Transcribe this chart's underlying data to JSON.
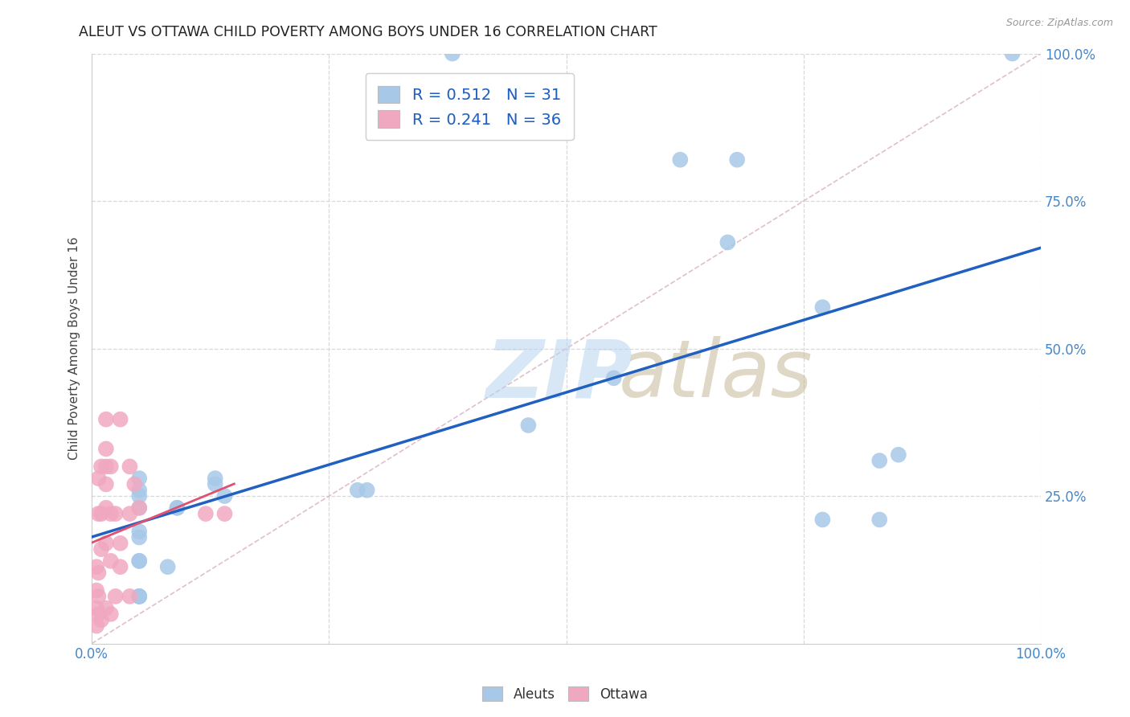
{
  "title": "ALEUT VS OTTAWA CHILD POVERTY AMONG BOYS UNDER 16 CORRELATION CHART",
  "source": "Source: ZipAtlas.com",
  "ylabel": "Child Poverty Among Boys Under 16",
  "xlim": [
    0.0,
    1.0
  ],
  "ylim": [
    0.0,
    1.0
  ],
  "xticks": [
    0.0,
    1.0
  ],
  "xticklabels": [
    "0.0%",
    "100.0%"
  ],
  "yticks": [
    0.25,
    0.5,
    0.75,
    1.0
  ],
  "yticklabels": [
    "25.0%",
    "50.0%",
    "75.0%",
    "100.0%"
  ],
  "grid_yticks": [
    0.25,
    0.5,
    0.75,
    1.0
  ],
  "grid_xticks": [
    0.25,
    0.5,
    0.75,
    1.0
  ],
  "aleuts_color": "#a8c8e8",
  "ottawa_color": "#f0a8c0",
  "aleuts_R": 0.512,
  "aleuts_N": 31,
  "ottawa_R": 0.241,
  "ottawa_N": 36,
  "aleuts_line_color": "#2060c0",
  "ottawa_line_color": "#e05070",
  "diagonal_color": "#d8b0c0",
  "background_color": "#ffffff",
  "grid_color": "#d8d8d8",
  "tick_color": "#4488cc",
  "aleuts_x": [
    0.38,
    0.97,
    0.62,
    0.68,
    0.67,
    0.55,
    0.46,
    0.77,
    0.83,
    0.77,
    0.83,
    0.85,
    0.05,
    0.05,
    0.05,
    0.13,
    0.13,
    0.14,
    0.28,
    0.29,
    0.05,
    0.05,
    0.05,
    0.08,
    0.05,
    0.05,
    0.05,
    0.09,
    0.09,
    0.05,
    0.05
  ],
  "aleuts_y": [
    1.0,
    1.0,
    0.82,
    0.82,
    0.68,
    0.45,
    0.37,
    0.57,
    0.31,
    0.21,
    0.21,
    0.32,
    0.26,
    0.28,
    0.23,
    0.27,
    0.28,
    0.25,
    0.26,
    0.26,
    0.19,
    0.18,
    0.14,
    0.13,
    0.08,
    0.08,
    0.08,
    0.23,
    0.23,
    0.25,
    0.14
  ],
  "ottawa_x": [
    0.005,
    0.005,
    0.005,
    0.005,
    0.007,
    0.007,
    0.007,
    0.007,
    0.007,
    0.01,
    0.01,
    0.01,
    0.01,
    0.015,
    0.015,
    0.015,
    0.015,
    0.015,
    0.015,
    0.015,
    0.02,
    0.02,
    0.02,
    0.02,
    0.025,
    0.025,
    0.03,
    0.03,
    0.03,
    0.04,
    0.04,
    0.04,
    0.045,
    0.05,
    0.12,
    0.14
  ],
  "ottawa_y": [
    0.03,
    0.06,
    0.09,
    0.13,
    0.05,
    0.08,
    0.12,
    0.22,
    0.28,
    0.04,
    0.16,
    0.22,
    0.3,
    0.06,
    0.17,
    0.23,
    0.27,
    0.3,
    0.33,
    0.38,
    0.05,
    0.14,
    0.22,
    0.3,
    0.08,
    0.22,
    0.13,
    0.17,
    0.38,
    0.08,
    0.22,
    0.3,
    0.27,
    0.23,
    0.22,
    0.22
  ],
  "watermark_zip_color": "#c0d8f0",
  "watermark_atlas_color": "#d0c8b8",
  "watermark_alpha": 0.55
}
